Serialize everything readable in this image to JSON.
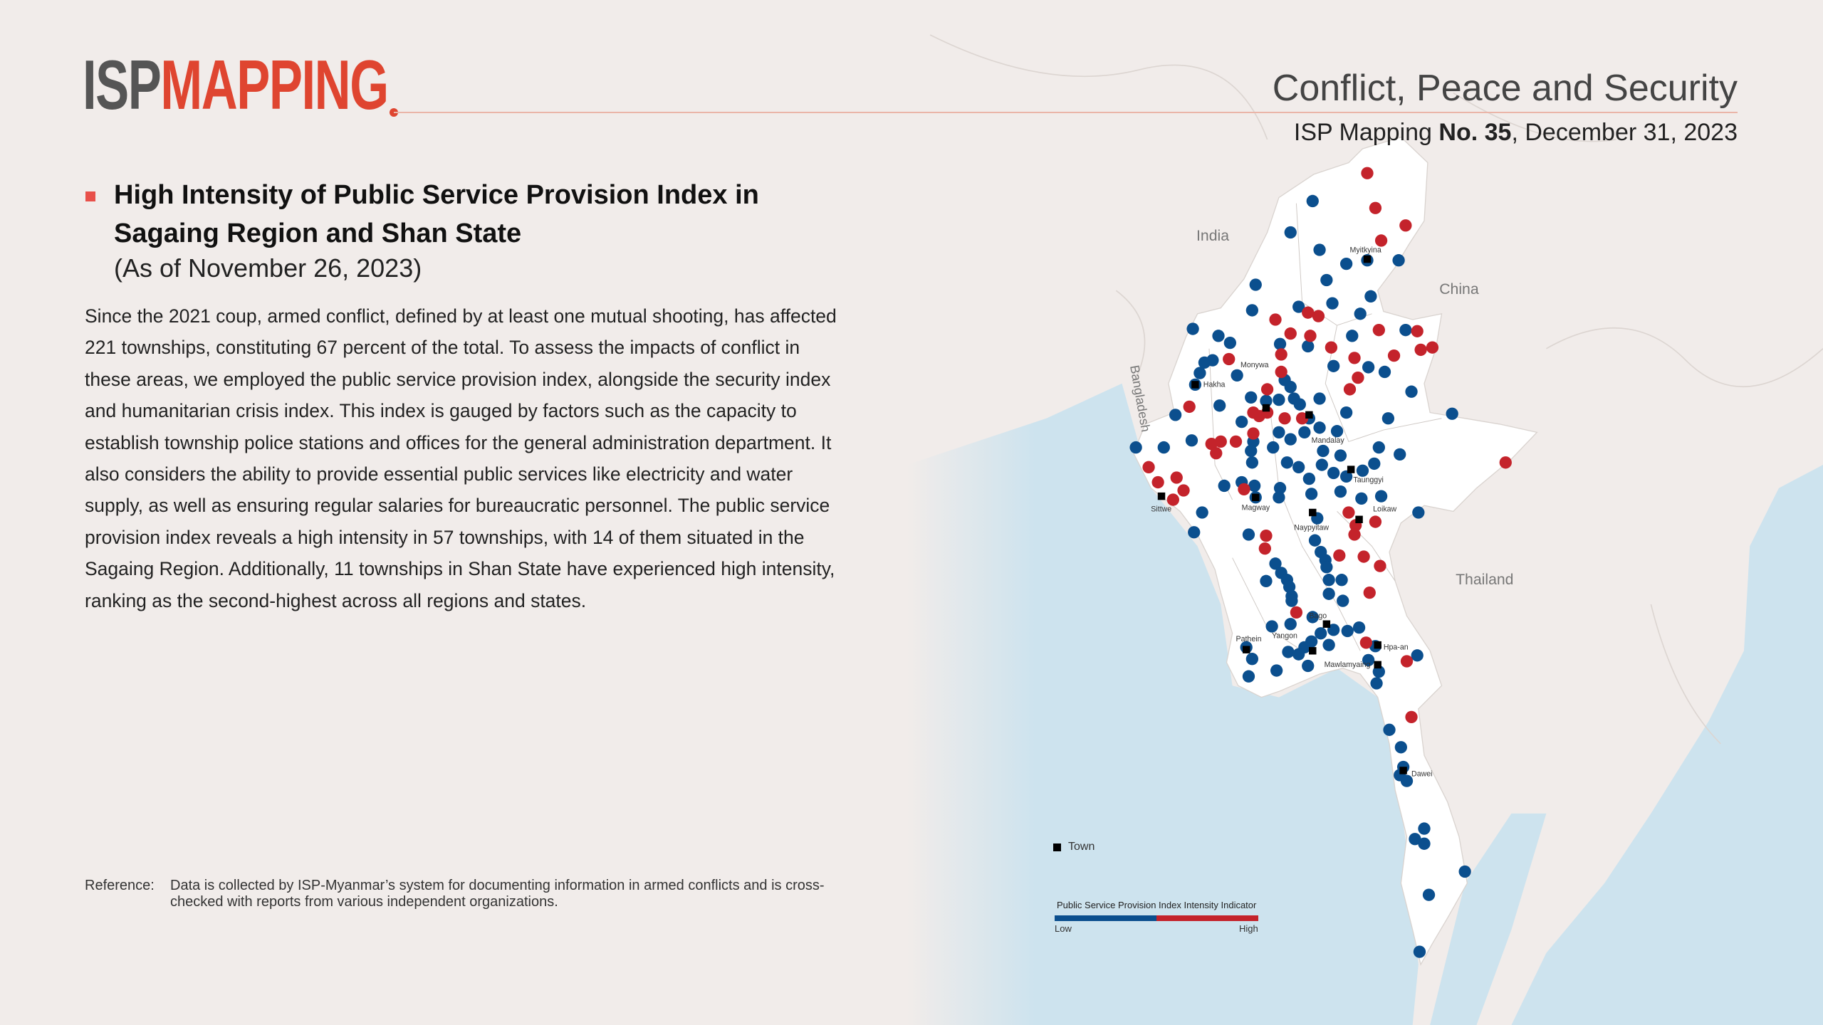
{
  "header": {
    "logo_isp": "ISP",
    "logo_mapping": "MAPPING",
    "title": "Conflict, Peace and Security",
    "sub_prefix": "ISP Mapping ",
    "sub_number": "No. 35",
    "sub_date": ", December 31, 2023"
  },
  "article": {
    "heading": "High Intensity of Public Service Provision Index in Sagaing Region and Shan State",
    "as_of": "(As of November 26, 2023)",
    "body": "Since the 2021 coup, armed conflict, defined by at least one mutual shooting, has affected 221 townships, constituting 67 percent of the total. To assess the impacts of conflict in these areas, we employed the public service provision index, alongside the security index and humanitarian crisis index. This index is gauged by factors such as the capacity to establish township police stations and offices for the general administration department. It also considers the ability to provide essential public services like electricity and water supply, as well as ensuring regular salaries for bureaucratic personnel. The public service provision index reveals a high intensity in 57 townships, with 14 of them situated in the Sagaing Region. Additionally, 11 townships in Shan State have experienced high intensity, ranking as the second-highest across all regions and states."
  },
  "reference": {
    "label": "Reference:",
    "text": "Data is collected by ISP-Myanmar’s system for documenting information in armed conflicts and is cross-checked with reports from various independent organizations."
  },
  "map": {
    "countries": {
      "india": "India",
      "china": "China",
      "thailand": "Thailand",
      "bangladesh": "Bangladesh"
    },
    "towns": {
      "myitkyina": "Myitkyina",
      "hakha": "Hakha",
      "monywa": "Monywa",
      "mandalay": "Mandalay",
      "taunggyi": "Taunggyi",
      "sittwe": "Sittwe",
      "magway": "Magway",
      "naypyitaw": "Naypyitaw",
      "loikaw": "Loikaw",
      "bago": "Bago",
      "yangon": "Yangon",
      "pathein": "Pathein",
      "hpaan": "Hpa-an",
      "mawlamyaing": "Mawlamyaing",
      "dawei": "Dawei"
    },
    "colors": {
      "low": "#0b4f8e",
      "high": "#c4232b",
      "land": "#ffffff",
      "sea": "#cde3ee",
      "neighbor": "#ede8e5"
    }
  },
  "legend": {
    "town": "Town",
    "title": "Public Service Provision Index Intensity Indicator",
    "low": "Low",
    "high": "High"
  }
}
